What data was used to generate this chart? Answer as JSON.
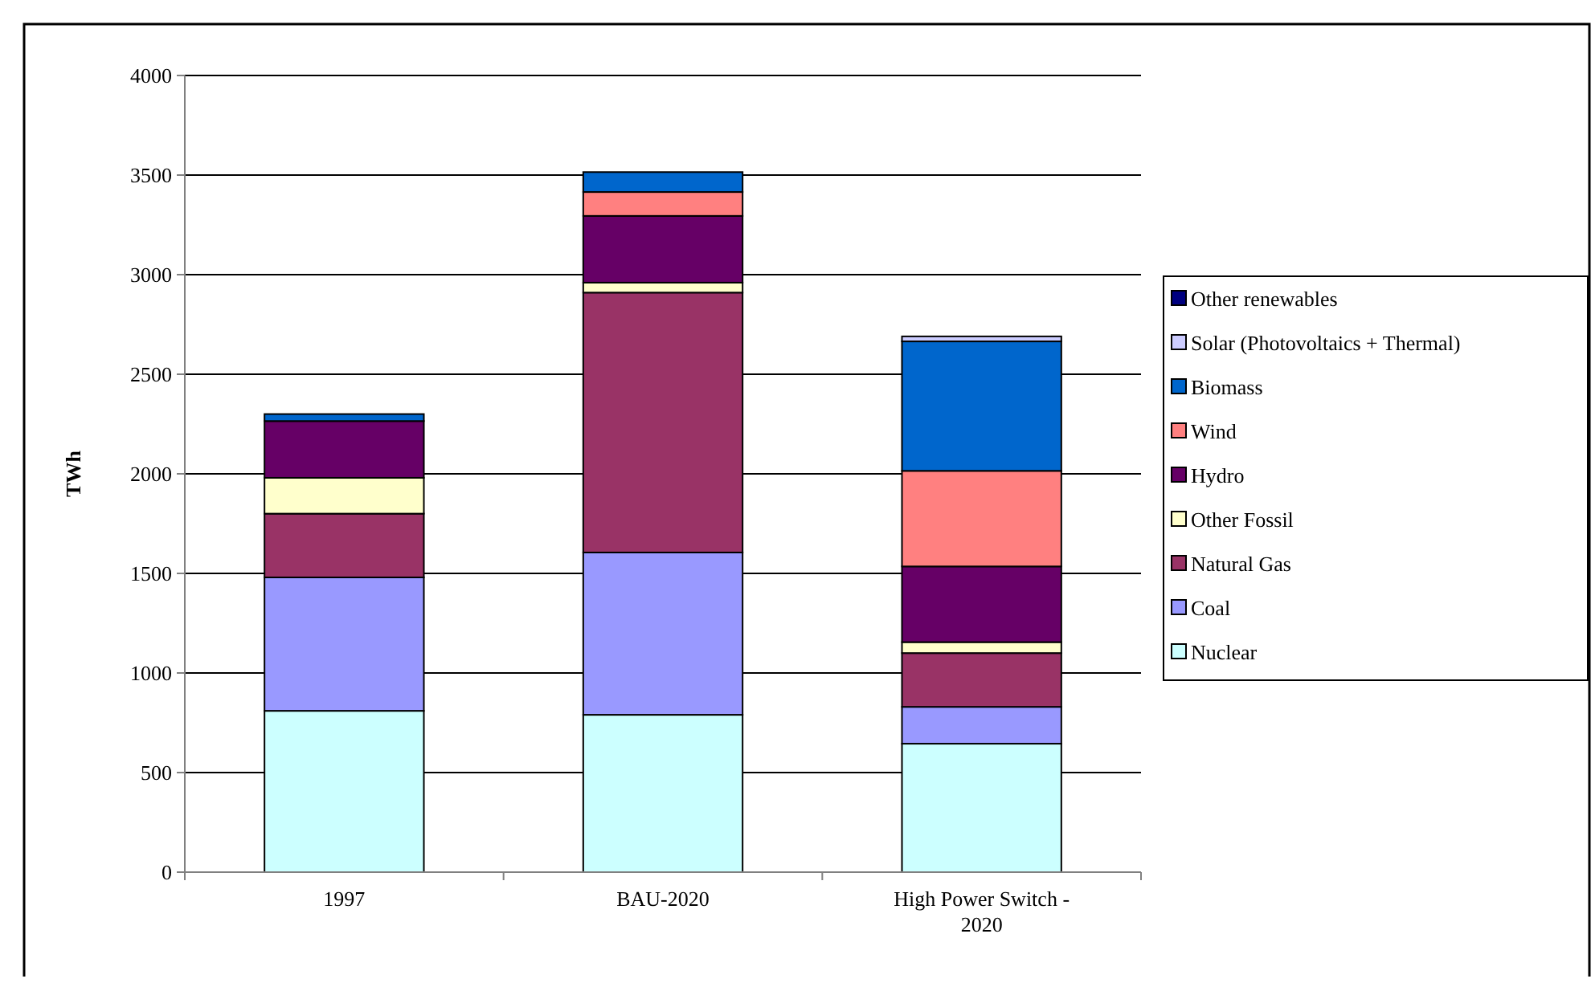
{
  "chart_data": {
    "type": "bar",
    "stacked": true,
    "ylabel": "TWh",
    "categories": [
      "1997",
      "BAU-2020",
      "High Power Switch - 2020"
    ],
    "series": [
      {
        "name": "Nuclear",
        "color": "#ccffff",
        "values": [
          810,
          790,
          645
        ]
      },
      {
        "name": "Coal",
        "color": "#9999ff",
        "values": [
          670,
          815,
          185
        ]
      },
      {
        "name": "Natural Gas",
        "color": "#993366",
        "values": [
          320,
          1305,
          270
        ]
      },
      {
        "name": "Other Fossil",
        "color": "#ffffcc",
        "values": [
          180,
          50,
          55
        ]
      },
      {
        "name": "Hydro",
        "color": "#660066",
        "values": [
          285,
          335,
          380
        ]
      },
      {
        "name": "Wind",
        "color": "#ff8080",
        "values": [
          0,
          120,
          480
        ]
      },
      {
        "name": "Biomass",
        "color": "#0066cc",
        "values": [
          35,
          100,
          650
        ]
      },
      {
        "name": "Solar (Photovoltaics + Thermal)",
        "color": "#ccccff",
        "values": [
          0,
          0,
          25
        ]
      },
      {
        "name": "Other renewables",
        "color": "#000080",
        "values": [
          0,
          0,
          0
        ]
      }
    ],
    "ylim": [
      0,
      4000
    ],
    "yticks": [
      0,
      500,
      1000,
      1500,
      2000,
      2500,
      3000,
      3500,
      4000
    ],
    "grid": "y",
    "legend": "right"
  }
}
